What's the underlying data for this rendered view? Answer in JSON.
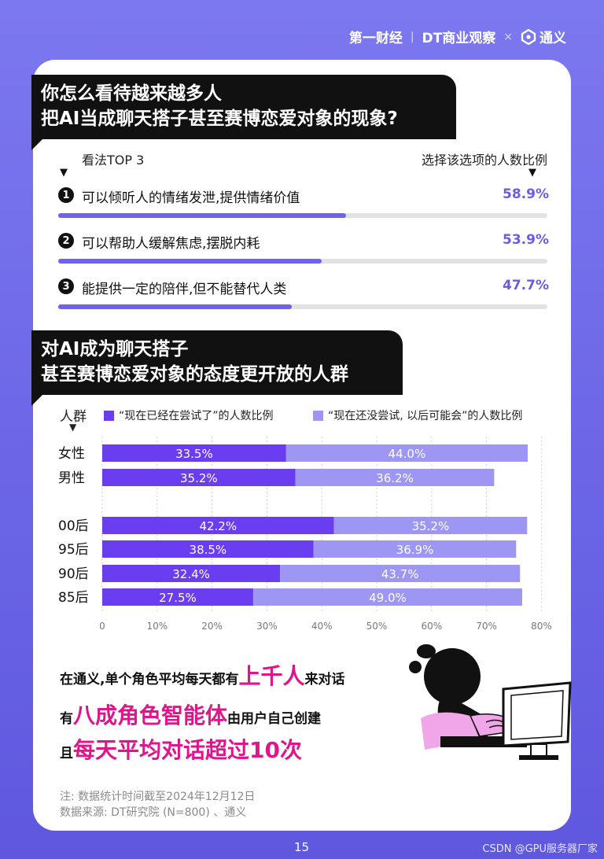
{
  "header": {
    "logo_1": "第一财经",
    "logo_2": "DT商业观察",
    "separator": "×",
    "logo_3": "通义"
  },
  "section1": {
    "title_line1": "你怎么看待越来越多人",
    "title_line2": "把AI当成聊天搭子甚至赛博恋爱对象的现象?",
    "left_header": "看法TOP 3",
    "right_header": "选择该选项的人数比例",
    "arrow_glyph": "▼",
    "items": [
      {
        "num": "1",
        "text": "可以倾听人的情绪发泄,提供情绪价值",
        "value": 58.9,
        "label": "58.9%"
      },
      {
        "num": "2",
        "text": "可以帮助人缓解焦虑,摆脱内耗",
        "value": 53.9,
        "label": "53.9%"
      },
      {
        "num": "3",
        "text": "能提供一定的陪伴,但不能替代人类",
        "value": 47.7,
        "label": "47.7%"
      }
    ],
    "bar_colors": {
      "fill": "#6d64e8",
      "track": "#e2e2e2"
    }
  },
  "section2": {
    "title_line1": "对AI成为聊天搭子",
    "title_line2": "甚至赛博恋爱对象的态度更开放的人群",
    "group_label": "人群",
    "arrow_glyph": "▼"
  },
  "chart_data": {
    "type": "bar",
    "orientation": "horizontal",
    "stacked": true,
    "categories": [
      "女性",
      "男性",
      "00后",
      "95后",
      "90后",
      "85后"
    ],
    "gap_after_index": 1,
    "series": [
      {
        "name": "“现在已经在尝试了”的人数比例",
        "color": "#6a3df0",
        "values": [
          33.5,
          35.2,
          42.2,
          38.5,
          32.4,
          27.5
        ]
      },
      {
        "name": "“现在还没尝试, 以后可能会”的人数比例",
        "color": "#9d97f3",
        "values": [
          44.0,
          36.2,
          35.2,
          36.9,
          43.7,
          49.0
        ]
      }
    ],
    "xlim": [
      0,
      80
    ],
    "xticks": [
      "0",
      "10%",
      "20%",
      "30%",
      "40%",
      "50%",
      "60%",
      "70%",
      "80%"
    ],
    "legend_position": "top"
  },
  "callout": {
    "line1_a": "在通义,单个角色平均每天都有",
    "line1_b": "上千人",
    "line1_c": "来对话",
    "line2_a": "有",
    "line2_b": "八成角色智能体",
    "line2_c": "由用户自己创建",
    "line3_a": "且",
    "line3_b": "每天平均对话超过10次",
    "highlight_color": "#e0158c"
  },
  "notes": {
    "line1": "注: 数据统计时间截至2024年12月12日",
    "line2": "数据来源: DT研究院 (N=800) 、通义"
  },
  "footer": {
    "page_number": "15",
    "watermark": "CSDN @GPU服务器厂家"
  }
}
